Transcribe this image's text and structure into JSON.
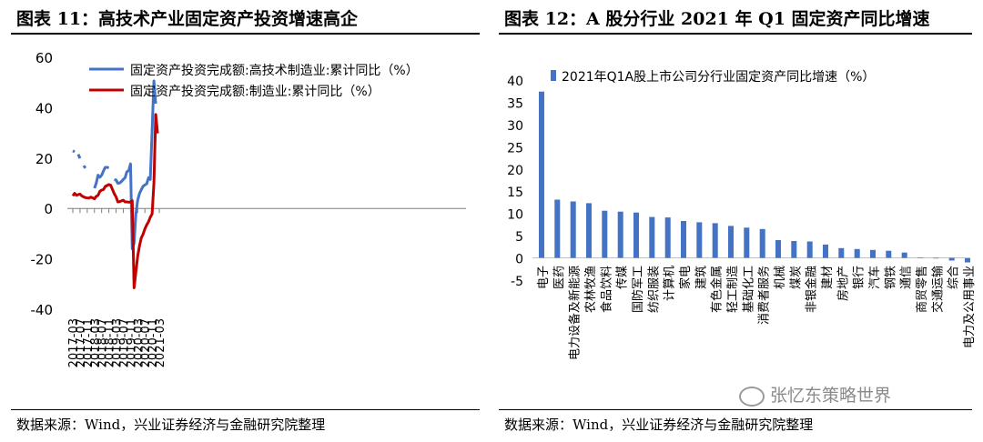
{
  "watermark": "张忆东策略世界",
  "chart_data": [
    {
      "type": "line",
      "title": "图表 11：高技术产业固定资产投资增速高企",
      "source": "数据来源：Wind，兴业证券经济与金融研究院整理",
      "x_ticks": [
        "2017-03",
        "2017-07",
        "2017-11",
        "2018-03",
        "2018-07",
        "2018-11",
        "2019-03",
        "2019-07",
        "2019-11",
        "2020-03",
        "2020-07",
        "2020-11",
        "2021-03"
      ],
      "ylim": [
        -40,
        60
      ],
      "y_ticks": [
        60,
        40,
        20,
        0,
        -20,
        -40
      ],
      "series": [
        {
          "name": "固定资产投资完成额:高技术制造业:累计同比（%）",
          "color": "#4472C4",
          "segments": [
            {
              "dashed": true,
              "start_month": 0,
              "values": [
                22.9,
                22.5
              ]
            },
            {
              "dashed": true,
              "start_month": 3,
              "values": [
                21.5,
                19.9
              ]
            },
            {
              "dashed": true,
              "start_month": 6,
              "values": [
                17.0,
                16.0
              ]
            },
            {
              "dashed": false,
              "start_month": 12,
              "values": [
                8.0,
                10.0,
                13.2,
                12.4,
                13.2,
                14.9,
                16.3,
                16.3,
                16.1
              ]
            },
            {
              "dashed": false,
              "start_month": 23,
              "values": [
                11.4,
                11.3,
                10.0,
                10.1,
                10.7,
                11.5,
                12.2,
                14.6,
                15.0,
                17.7,
                -16.0,
                -13.8,
                -2.2,
                3.4,
                6.0,
                7.4,
                8.8,
                9.3,
                9.8,
                12.2,
                11.5,
                30.5,
                50.6,
                41.6
              ]
            }
          ]
        },
        {
          "name": "固定资产投资完成额:制造业:累计同比（%）",
          "color": "#C00000",
          "segments": [
            {
              "dashed": false,
              "start_month": 0,
              "values": [
                5.0,
                6.0,
                5.2,
                5.5,
                5.7,
                5.0,
                4.6,
                4.3,
                4.2,
                4.1,
                4.5,
                4.2,
                3.8,
                4.8,
                5.2,
                6.8,
                7.3,
                7.5,
                8.7,
                9.1,
                9.5,
                9.2,
                7.5,
                5.9,
                4.6,
                2.6,
                2.7,
                3.0,
                3.3,
                2.6,
                2.6,
                2.5,
                2.5,
                3.1,
                -31.5,
                -25.2,
                -18.8,
                -14.8,
                -11.7,
                -10.2,
                -8.1,
                -6.5,
                -5.3,
                -3.5,
                -2.2,
                10.0,
                37.3,
                29.8
              ]
            }
          ]
        }
      ]
    },
    {
      "type": "bar",
      "title": "图表 12：A 股分行业 2021 年 Q1 固定资产同比增速",
      "source": "数据来源：Wind，兴业证券经济与金融研究院整理",
      "legend": "2021年Q1A股上市公司分行业固定资产同比增速（%）",
      "ylim": [
        -5,
        40
      ],
      "y_ticks": [
        40,
        35,
        30,
        25,
        20,
        15,
        10,
        5,
        0,
        -5
      ],
      "color": "#4472C4",
      "categories": [
        "电子",
        "医药",
        "电力设备及新能源",
        "农林牧渔",
        "食品饮料",
        "传媒",
        "国防军工",
        "纺织服装",
        "计算机",
        "家电",
        "建筑",
        "有色金属",
        "轻工制造",
        "基础化工",
        "消费者服务",
        "机械",
        "煤炭",
        "非银金融",
        "建材",
        "房地产",
        "银行",
        "汽车",
        "钢铁",
        "通信",
        "商贸零售",
        "交通运输",
        "综合",
        "电力及公用事业"
      ],
      "values": [
        37.4,
        13.1,
        12.7,
        12.3,
        10.6,
        10.4,
        10.2,
        9.2,
        9.1,
        8.3,
        8.0,
        7.8,
        7.2,
        6.8,
        6.5,
        4.0,
        3.8,
        3.7,
        3.0,
        2.2,
        2.0,
        1.8,
        1.6,
        1.2,
        0.1,
        0.0,
        -0.6,
        -1.0
      ]
    }
  ]
}
